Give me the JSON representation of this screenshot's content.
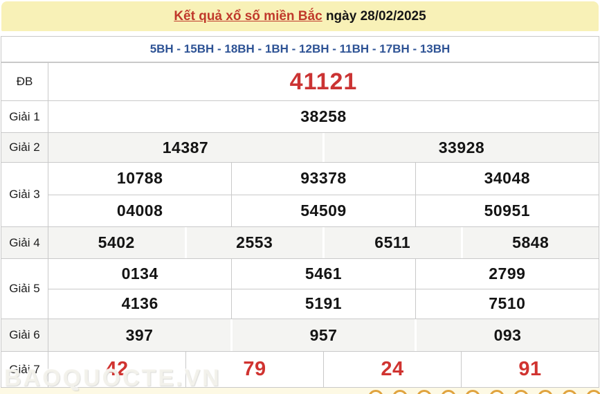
{
  "header": {
    "title": "Kết quả xổ số miền Bắc",
    "date_label": " ngày 28/02/2025"
  },
  "station_line": {
    "text": "5BH - 15BH - 18BH - 1BH - 12BH - 11BH - 17BH - 13BH"
  },
  "results": {
    "db": {
      "label": "ĐB",
      "value": "41121"
    },
    "g1": {
      "label": "Giải 1",
      "value": "38258"
    },
    "g2": {
      "label": "Giải 2",
      "values": [
        "14387",
        "33928"
      ]
    },
    "g3": {
      "label": "Giải 3",
      "row1": [
        "10788",
        "93378",
        "34048"
      ],
      "row2": [
        "04008",
        "54509",
        "50951"
      ]
    },
    "g4": {
      "label": "Giải 4",
      "values": [
        "5402",
        "2553",
        "6511",
        "5848"
      ]
    },
    "g5": {
      "label": "Giải 5",
      "row1": [
        "0134",
        "5461",
        "2799"
      ],
      "row2": [
        "4136",
        "5191",
        "7510"
      ]
    },
    "g6": {
      "label": "Giải 6",
      "values": [
        "397",
        "957",
        "093"
      ]
    },
    "g7": {
      "label": "Giải 7",
      "values": [
        "42",
        "79",
        "24",
        "91"
      ]
    }
  },
  "watermark": "BAOQUOCTE.VN",
  "colors": {
    "header-bg": "#f8f1b7",
    "title-red": "#c0392b",
    "station-blue": "#2e5395",
    "special-red": "#cb3333",
    "g7-red": "#d03330",
    "row-alt-bg": "#f4f4f2",
    "border": "#c9c9c9",
    "footer-bg": "#fdf9e4",
    "ball-orange": "#e0a33e"
  }
}
